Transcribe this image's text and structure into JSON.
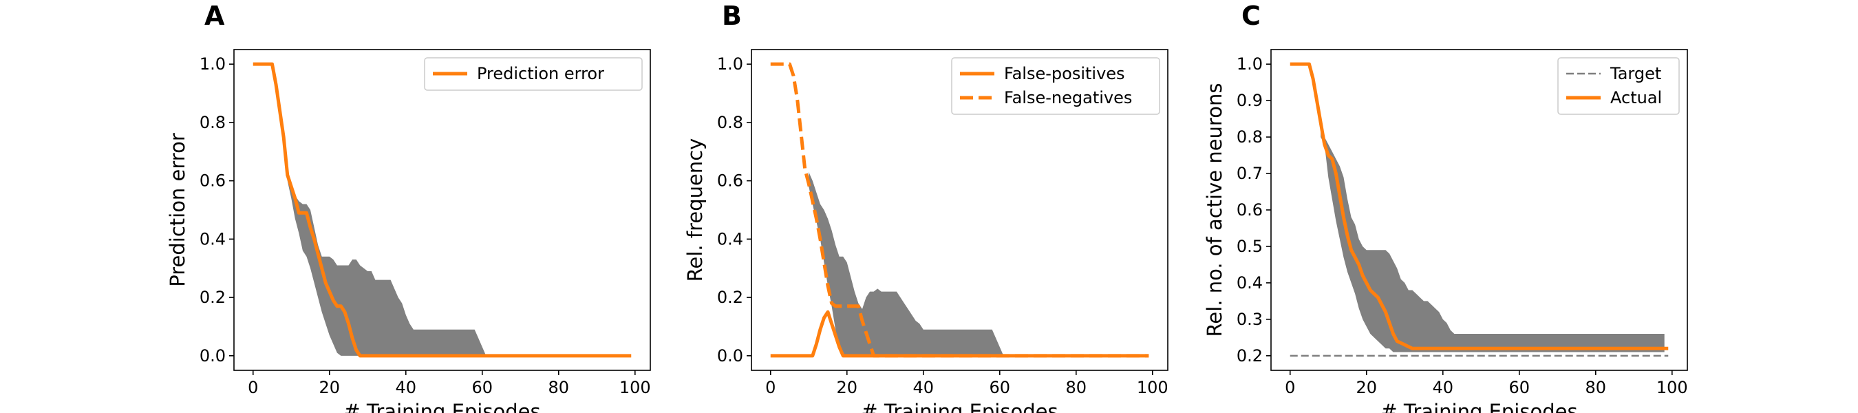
{
  "chart_data": [
    {
      "panel": "A",
      "type": "line",
      "xlabel": "# Training Episodes",
      "ylabel": "Prediction error",
      "xlim": [
        -5,
        104
      ],
      "ylim": [
        -0.05,
        1.05
      ],
      "xticks": [
        0,
        20,
        40,
        60,
        80,
        100
      ],
      "yticks": [
        0.0,
        0.2,
        0.4,
        0.6,
        0.8,
        1.0
      ],
      "grid": false,
      "legend_position": "top-right",
      "band": {
        "x": [
          9,
          10,
          11,
          12,
          13,
          14,
          15,
          16,
          17,
          18,
          19,
          20,
          21,
          22,
          23,
          24,
          25,
          26,
          27,
          28,
          29,
          30,
          31,
          32,
          33,
          34,
          35,
          36,
          37,
          38,
          39,
          40,
          41,
          42,
          50,
          58,
          59,
          60,
          61,
          99
        ],
        "upper": [
          0.63,
          0.58,
          0.55,
          0.53,
          0.52,
          0.52,
          0.5,
          0.44,
          0.38,
          0.34,
          0.34,
          0.34,
          0.33,
          0.31,
          0.31,
          0.31,
          0.31,
          0.33,
          0.33,
          0.31,
          0.3,
          0.29,
          0.29,
          0.26,
          0.26,
          0.26,
          0.26,
          0.26,
          0.23,
          0.2,
          0.18,
          0.14,
          0.11,
          0.09,
          0.09,
          0.09,
          0.06,
          0.03,
          0.0,
          0.0
        ],
        "lower": [
          0.6,
          0.54,
          0.47,
          0.42,
          0.36,
          0.34,
          0.3,
          0.25,
          0.2,
          0.15,
          0.11,
          0.07,
          0.04,
          0.01,
          0.0,
          0.0,
          0.0,
          0.0,
          0.0,
          0.0,
          0.0,
          0.0,
          0.0,
          0.0,
          0.0,
          0.0,
          0.0,
          0.0,
          0.0,
          0.0,
          0.0,
          0.0,
          0.0,
          0.0,
          0.0,
          0.0,
          0.0,
          0.0,
          0.0,
          0.0
        ]
      },
      "series": [
        {
          "name": "Prediction error",
          "style": "solid",
          "color": "#ff7f0e",
          "x": [
            0,
            5,
            6,
            7,
            8,
            9,
            10,
            11,
            12,
            13,
            14,
            15,
            16,
            17,
            18,
            19,
            20,
            21,
            22,
            23,
            24,
            25,
            26,
            27,
            28,
            99
          ],
          "y": [
            1.0,
            1.0,
            0.93,
            0.84,
            0.75,
            0.62,
            0.58,
            0.54,
            0.49,
            0.49,
            0.49,
            0.44,
            0.4,
            0.35,
            0.3,
            0.25,
            0.22,
            0.19,
            0.17,
            0.17,
            0.15,
            0.11,
            0.06,
            0.02,
            0.0,
            0.0
          ]
        }
      ]
    },
    {
      "panel": "B",
      "type": "line",
      "xlabel": "# Training Episodes",
      "ylabel": "Rel. frequency",
      "xlim": [
        -5,
        104
      ],
      "ylim": [
        -0.05,
        1.05
      ],
      "xticks": [
        0,
        20,
        40,
        60,
        80,
        100
      ],
      "yticks": [
        0.0,
        0.2,
        0.4,
        0.6,
        0.8,
        1.0
      ],
      "grid": false,
      "legend_position": "top-right",
      "band": {
        "x": [
          10,
          11,
          12,
          13,
          14,
          15,
          16,
          17,
          18,
          19,
          20,
          21,
          22,
          23,
          24,
          25,
          26,
          27,
          28,
          29,
          30,
          31,
          32,
          33,
          34,
          35,
          36,
          37,
          38,
          39,
          40,
          41,
          42,
          50,
          58,
          59,
          60,
          61,
          99
        ],
        "upper": [
          0.63,
          0.6,
          0.56,
          0.52,
          0.5,
          0.47,
          0.43,
          0.38,
          0.34,
          0.34,
          0.32,
          0.27,
          0.22,
          0.18,
          0.16,
          0.2,
          0.22,
          0.22,
          0.23,
          0.22,
          0.22,
          0.22,
          0.22,
          0.22,
          0.2,
          0.18,
          0.16,
          0.14,
          0.12,
          0.11,
          0.09,
          0.09,
          0.09,
          0.09,
          0.09,
          0.06,
          0.03,
          0.0,
          0.0
        ],
        "lower": [
          0.58,
          0.52,
          0.46,
          0.4,
          0.32,
          0.24,
          0.17,
          0.09,
          0.03,
          0.0,
          0.0,
          0.0,
          0.0,
          0.0,
          0.0,
          0.0,
          0.0,
          0.0,
          0.0,
          0.0,
          0.0,
          0.0,
          0.0,
          0.0,
          0.0,
          0.0,
          0.0,
          0.0,
          0.0,
          0.0,
          0.0,
          0.0,
          0.0,
          0.0,
          0.0,
          0.0,
          0.0,
          0.0,
          0.0
        ]
      },
      "series": [
        {
          "name": "False-positives",
          "style": "solid",
          "color": "#ff7f0e",
          "x": [
            0,
            11,
            12,
            13,
            14,
            15,
            16,
            17,
            18,
            19,
            99
          ],
          "y": [
            0.0,
            0.0,
            0.04,
            0.09,
            0.13,
            0.15,
            0.11,
            0.07,
            0.03,
            0.0,
            0.0
          ]
        },
        {
          "name": "False-negatives",
          "style": "dashed",
          "color": "#ff7f0e",
          "x": [
            0,
            5,
            6,
            7,
            8,
            9,
            10,
            11,
            12,
            13,
            14,
            15,
            16,
            17,
            18,
            19,
            23,
            24,
            25,
            26,
            27,
            99
          ],
          "y": [
            1.0,
            1.0,
            0.96,
            0.88,
            0.76,
            0.64,
            0.59,
            0.53,
            0.47,
            0.4,
            0.32,
            0.24,
            0.18,
            0.17,
            0.17,
            0.17,
            0.17,
            0.12,
            0.08,
            0.04,
            0.0,
            0.0
          ]
        }
      ]
    },
    {
      "panel": "C",
      "type": "line",
      "xlabel": "# Training Episodes",
      "ylabel": "Rel. no. of active neurons",
      "xlim": [
        -5,
        104
      ],
      "ylim": [
        0.16,
        1.04
      ],
      "xticks": [
        0,
        20,
        40,
        60,
        80,
        100
      ],
      "yticks": [
        0.2,
        0.3,
        0.4,
        0.5,
        0.6,
        0.7,
        0.8,
        0.9,
        1.0
      ],
      "grid": false,
      "legend_position": "top-right",
      "band": {
        "x": [
          8,
          9,
          10,
          11,
          12,
          13,
          14,
          15,
          16,
          17,
          18,
          19,
          20,
          21,
          22,
          23,
          24,
          25,
          26,
          27,
          28,
          29,
          30,
          31,
          32,
          33,
          34,
          35,
          36,
          37,
          38,
          39,
          40,
          41,
          42,
          43,
          50,
          98
        ],
        "upper": [
          0.82,
          0.8,
          0.78,
          0.76,
          0.74,
          0.72,
          0.69,
          0.63,
          0.58,
          0.56,
          0.52,
          0.5,
          0.49,
          0.49,
          0.49,
          0.49,
          0.49,
          0.49,
          0.48,
          0.46,
          0.44,
          0.41,
          0.4,
          0.38,
          0.38,
          0.37,
          0.36,
          0.35,
          0.35,
          0.34,
          0.33,
          0.32,
          0.3,
          0.29,
          0.27,
          0.26,
          0.26,
          0.26
        ],
        "lower": [
          0.8,
          0.78,
          0.69,
          0.63,
          0.57,
          0.52,
          0.47,
          0.43,
          0.4,
          0.37,
          0.33,
          0.3,
          0.28,
          0.26,
          0.25,
          0.24,
          0.23,
          0.22,
          0.22,
          0.21,
          0.21,
          0.21,
          0.21,
          0.21,
          0.21,
          0.21,
          0.21,
          0.21,
          0.21,
          0.21,
          0.21,
          0.21,
          0.21,
          0.21,
          0.21,
          0.21,
          0.21,
          0.21
        ]
      },
      "series": [
        {
          "name": "Target",
          "style": "dashed",
          "color": "#7f7f7f",
          "x": [
            0,
            99
          ],
          "y": [
            0.2,
            0.2
          ]
        },
        {
          "name": "Actual",
          "style": "solid",
          "color": "#ff7f0e",
          "x": [
            0,
            5,
            6,
            7,
            8,
            9,
            10,
            11,
            12,
            13,
            14,
            15,
            16,
            17,
            18,
            19,
            20,
            21,
            22,
            23,
            24,
            25,
            26,
            27,
            28,
            29,
            30,
            31,
            32,
            33,
            34,
            35,
            36,
            37,
            38,
            99
          ],
          "y": [
            1.0,
            1.0,
            0.96,
            0.9,
            0.84,
            0.78,
            0.75,
            0.74,
            0.7,
            0.64,
            0.58,
            0.53,
            0.49,
            0.47,
            0.45,
            0.42,
            0.4,
            0.38,
            0.37,
            0.36,
            0.34,
            0.32,
            0.29,
            0.26,
            0.24,
            0.235,
            0.23,
            0.225,
            0.22,
            0.22,
            0.22,
            0.22,
            0.22,
            0.22,
            0.22,
            0.22
          ]
        }
      ]
    }
  ]
}
